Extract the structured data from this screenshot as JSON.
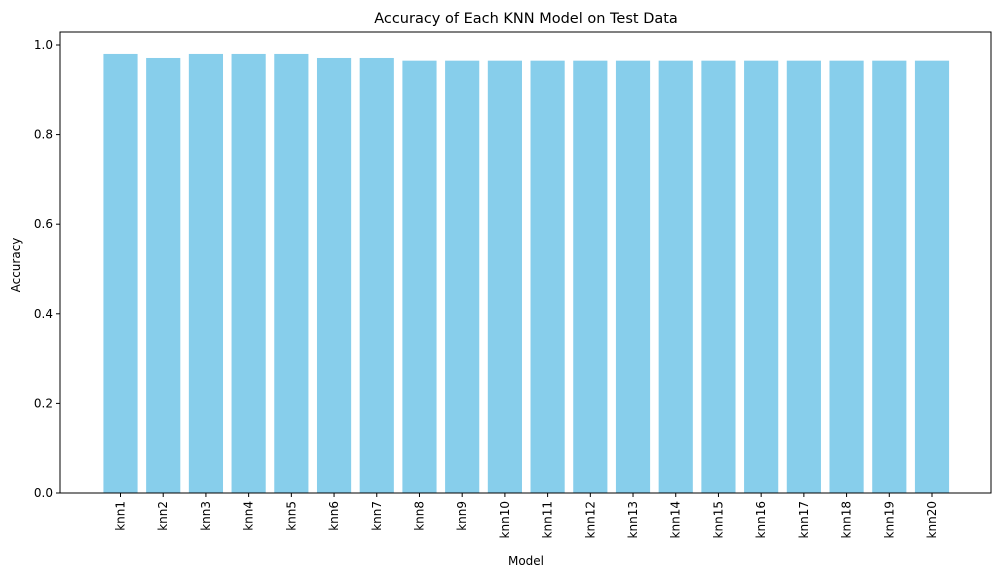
{
  "chart_data": {
    "type": "bar",
    "title": "Accuracy of Each KNN Model on Test Data",
    "xlabel": "Model",
    "ylabel": "Accuracy",
    "categories": [
      "knn1",
      "knn2",
      "knn3",
      "knn4",
      "knn5",
      "knn6",
      "knn7",
      "knn8",
      "knn9",
      "knn10",
      "knn11",
      "knn12",
      "knn13",
      "knn14",
      "knn15",
      "knn16",
      "knn17",
      "knn18",
      "knn19",
      "knn20"
    ],
    "values": [
      0.98,
      0.971,
      0.98,
      0.98,
      0.98,
      0.971,
      0.971,
      0.965,
      0.965,
      0.965,
      0.965,
      0.965,
      0.965,
      0.965,
      0.965,
      0.965,
      0.965,
      0.965,
      0.965,
      0.965
    ],
    "ylim": [
      0,
      1.029
    ],
    "yticks": [
      0.0,
      0.2,
      0.4,
      0.6,
      0.8,
      1.0
    ],
    "ytick_labels": [
      "0.0",
      "0.2",
      "0.4",
      "0.6",
      "0.8",
      "1.0"
    ],
    "bar_color": "#87ceeb",
    "grid": false,
    "legend": false
  }
}
